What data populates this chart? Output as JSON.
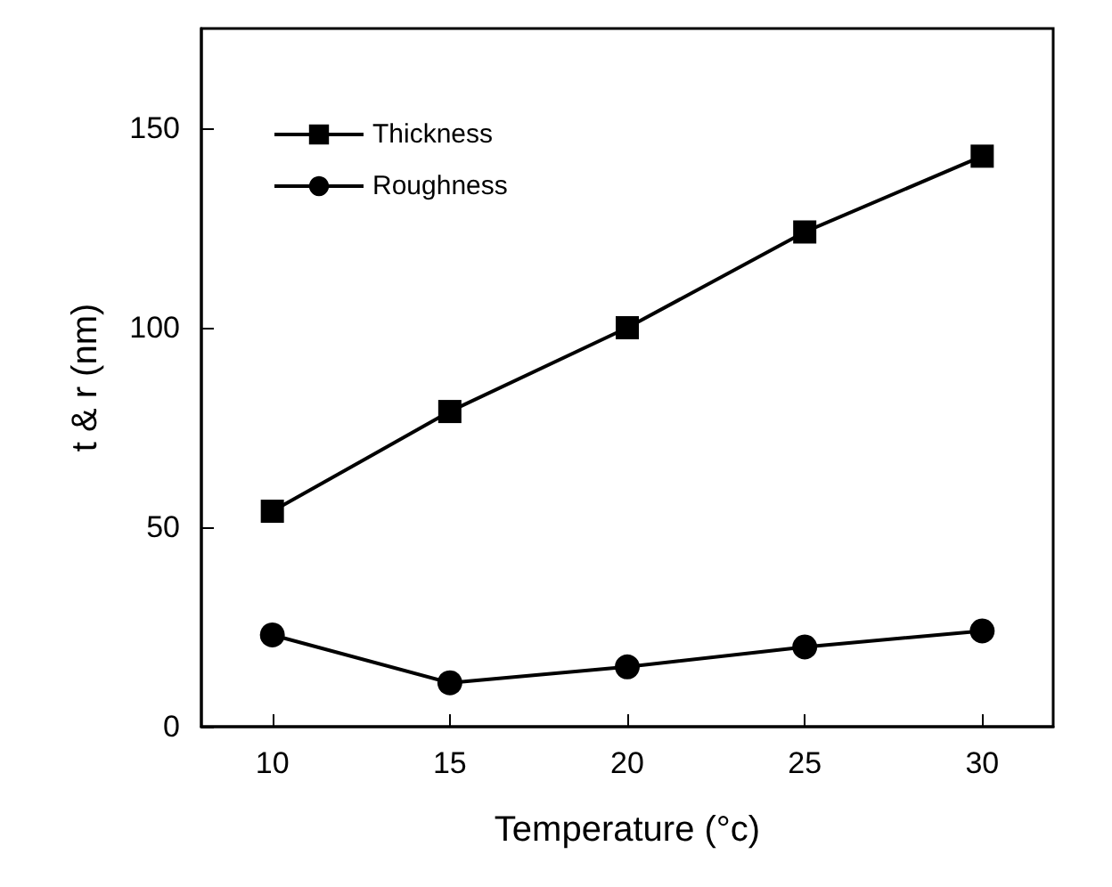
{
  "chart_data": {
    "type": "line",
    "xlabel": "Temperature (°c)",
    "ylabel": "t & r (nm)",
    "x": [
      10,
      15,
      20,
      25,
      30
    ],
    "series": [
      {
        "name": "Thickness",
        "color": "#000000",
        "marker": "square",
        "values": [
          54,
          79,
          100,
          124,
          143
        ]
      },
      {
        "name": "Roughness",
        "color": "#000000",
        "marker": "circle",
        "values": [
          23,
          11,
          15,
          20,
          24
        ]
      }
    ],
    "xlim": [
      8,
      32
    ],
    "xticks": [
      10,
      15,
      20,
      25,
      30
    ],
    "ylim": [
      0,
      175
    ],
    "yticks": [
      0,
      50,
      100,
      150
    ],
    "grid": false,
    "legend": "top left",
    "line_style": "solid"
  }
}
